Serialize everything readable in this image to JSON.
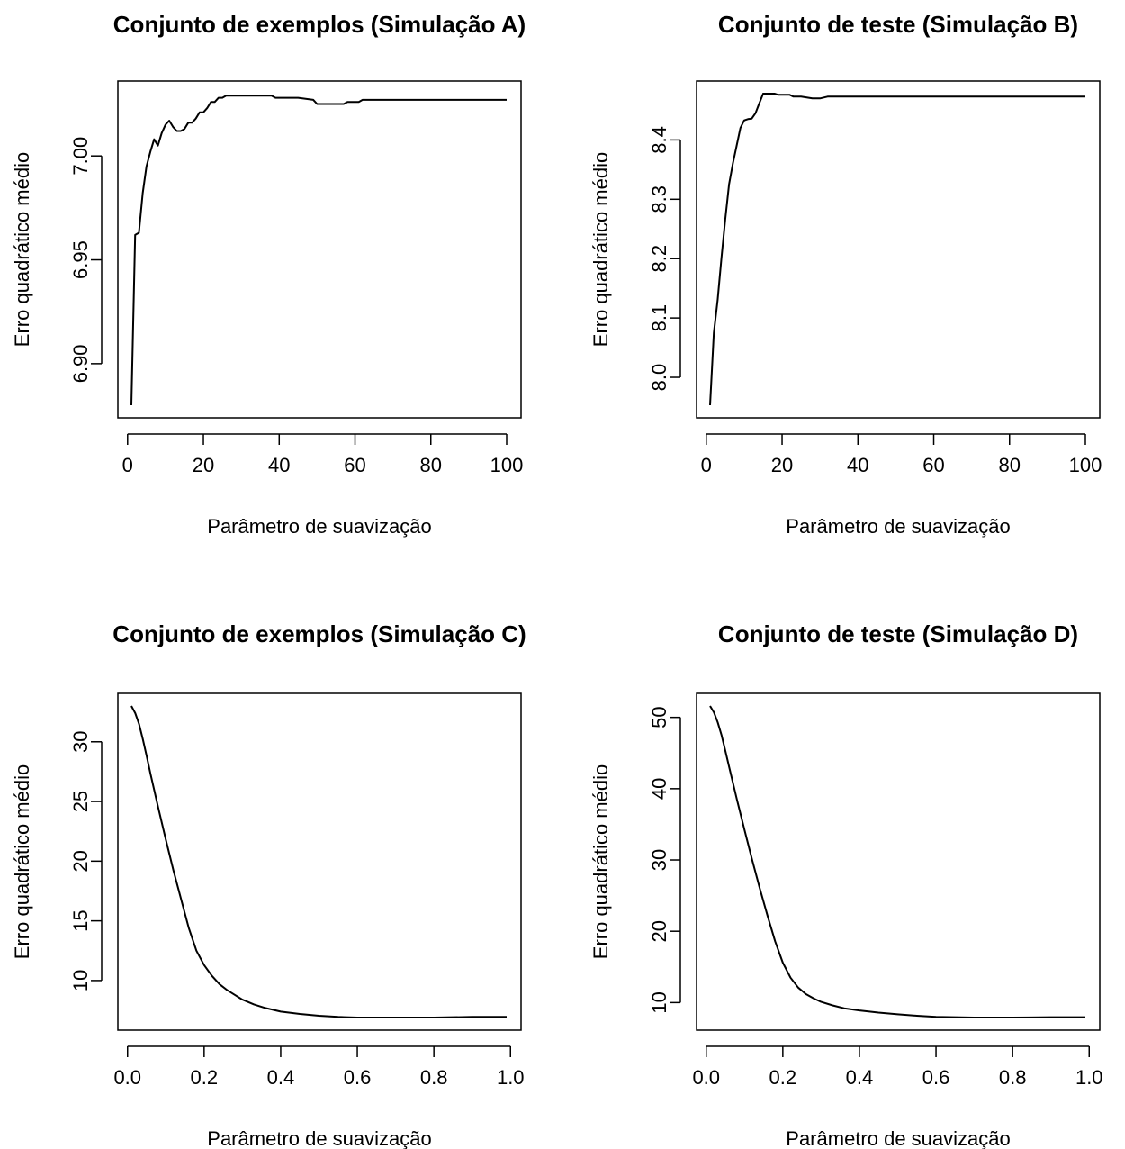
{
  "chart_data": [
    {
      "type": "line",
      "title": "Conjunto de exemplos (Simulação A)",
      "xlabel": "Parâmetro de suavização",
      "ylabel": "Erro quadrático médio",
      "xlim": [
        1,
        100
      ],
      "ylim": [
        6.88,
        7.03
      ],
      "xticks": [
        0,
        20,
        40,
        60,
        80,
        100
      ],
      "xtick_labels": [
        "0",
        "20",
        "40",
        "60",
        "80",
        "100"
      ],
      "yticks": [
        6.9,
        6.95,
        7.0
      ],
      "ytick_labels": [
        "6.90",
        "6.95",
        "7.00"
      ],
      "grid": false,
      "x": [
        1,
        2,
        3,
        4,
        5,
        6,
        7,
        8,
        9,
        10,
        11,
        12,
        13,
        14,
        15,
        16,
        17,
        18,
        19,
        20,
        21,
        22,
        23,
        24,
        25,
        26,
        27,
        30,
        35,
        38,
        39,
        45,
        49,
        50,
        55,
        57,
        58,
        60,
        61,
        62,
        65,
        70,
        80,
        90,
        100
      ],
      "y": [
        6.88,
        6.962,
        6.963,
        6.982,
        6.995,
        7.002,
        7.008,
        7.005,
        7.011,
        7.015,
        7.017,
        7.014,
        7.012,
        7.012,
        7.013,
        7.016,
        7.016,
        7.018,
        7.021,
        7.021,
        7.023,
        7.026,
        7.026,
        7.028,
        7.028,
        7.029,
        7.029,
        7.029,
        7.029,
        7.029,
        7.028,
        7.028,
        7.027,
        7.025,
        7.025,
        7.025,
        7.026,
        7.026,
        7.026,
        7.027,
        7.027,
        7.027,
        7.027,
        7.027,
        7.027
      ]
    },
    {
      "type": "line",
      "title": "Conjunto de teste (Simulação B)",
      "xlabel": "Parâmetro de suavização",
      "ylabel": "Erro quadrático médio",
      "xlim": [
        1,
        100
      ],
      "ylim": [
        7.953,
        8.478
      ],
      "xticks": [
        0,
        20,
        40,
        60,
        80,
        100
      ],
      "xtick_labels": [
        "0",
        "20",
        "40",
        "60",
        "80",
        "100"
      ],
      "yticks": [
        8.0,
        8.1,
        8.2,
        8.3,
        8.4
      ],
      "ytick_labels": [
        "8.0",
        "8.1",
        "8.2",
        "8.3",
        "8.4"
      ],
      "grid": false,
      "x": [
        1,
        2,
        3,
        4,
        5,
        6,
        7,
        8,
        9,
        10,
        11,
        12,
        13,
        14,
        15,
        16,
        18,
        19,
        20,
        22,
        23,
        25,
        28,
        30,
        32,
        40,
        60,
        80,
        100
      ],
      "y": [
        7.953,
        8.075,
        8.13,
        8.2,
        8.265,
        8.325,
        8.36,
        8.39,
        8.42,
        8.433,
        8.435,
        8.436,
        8.445,
        8.462,
        8.478,
        8.478,
        8.478,
        8.476,
        8.476,
        8.476,
        8.473,
        8.473,
        8.47,
        8.47,
        8.473,
        8.473,
        8.473,
        8.473,
        8.473
      ]
    },
    {
      "type": "line",
      "title": "Conjunto de exemplos (Simulação C)",
      "xlabel": "Parâmetro de suavização",
      "ylabel": "Erro quadrático médio",
      "xlim": [
        0.01,
        0.99
      ],
      "ylim": [
        6.9,
        33.0
      ],
      "xticks": [
        0.0,
        0.2,
        0.4,
        0.6,
        0.8,
        1.0
      ],
      "xtick_labels": [
        "0.0",
        "0.2",
        "0.4",
        "0.6",
        "0.8",
        "1.0"
      ],
      "yticks": [
        10,
        15,
        20,
        25,
        30
      ],
      "ytick_labels": [
        "10",
        "15",
        "20",
        "25",
        "30"
      ],
      "grid": false,
      "x": [
        0.01,
        0.02,
        0.03,
        0.04,
        0.05,
        0.06,
        0.08,
        0.1,
        0.12,
        0.14,
        0.16,
        0.18,
        0.2,
        0.22,
        0.24,
        0.26,
        0.28,
        0.3,
        0.33,
        0.36,
        0.4,
        0.45,
        0.5,
        0.55,
        0.6,
        0.65,
        0.7,
        0.8,
        0.9,
        0.99
      ],
      "y": [
        33.0,
        32.4,
        31.5,
        30.2,
        28.8,
        27.3,
        24.5,
        21.8,
        19.2,
        16.8,
        14.4,
        12.5,
        11.3,
        10.4,
        9.7,
        9.2,
        8.8,
        8.4,
        8.0,
        7.7,
        7.4,
        7.2,
        7.05,
        6.95,
        6.9,
        6.9,
        6.9,
        6.9,
        6.95,
        6.95
      ]
    },
    {
      "type": "line",
      "title": "Conjunto de teste (Simulação D)",
      "xlabel": "Parâmetro de suavização",
      "ylabel": "Erro quadrático médio",
      "xlim": [
        0.01,
        0.99
      ],
      "ylim": [
        7.9,
        51.6
      ],
      "xticks": [
        0.0,
        0.2,
        0.4,
        0.6,
        0.8,
        1.0
      ],
      "xtick_labels": [
        "0.0",
        "0.2",
        "0.4",
        "0.6",
        "0.8",
        "1.0"
      ],
      "yticks": [
        10,
        20,
        30,
        40,
        50
      ],
      "ytick_labels": [
        "10",
        "20",
        "30",
        "40",
        "50"
      ],
      "grid": false,
      "x": [
        0.01,
        0.02,
        0.03,
        0.04,
        0.05,
        0.06,
        0.08,
        0.1,
        0.12,
        0.14,
        0.16,
        0.18,
        0.2,
        0.22,
        0.24,
        0.26,
        0.28,
        0.3,
        0.33,
        0.36,
        0.4,
        0.45,
        0.5,
        0.55,
        0.6,
        0.65,
        0.7,
        0.8,
        0.9,
        0.99
      ],
      "y": [
        51.6,
        50.7,
        49.3,
        47.5,
        45.3,
        43.0,
        38.5,
        34.2,
        30.0,
        26.0,
        22.2,
        18.6,
        15.6,
        13.5,
        12.1,
        11.2,
        10.6,
        10.1,
        9.6,
        9.2,
        8.9,
        8.6,
        8.35,
        8.15,
        8.0,
        7.95,
        7.9,
        7.9,
        7.95,
        7.95
      ]
    }
  ]
}
